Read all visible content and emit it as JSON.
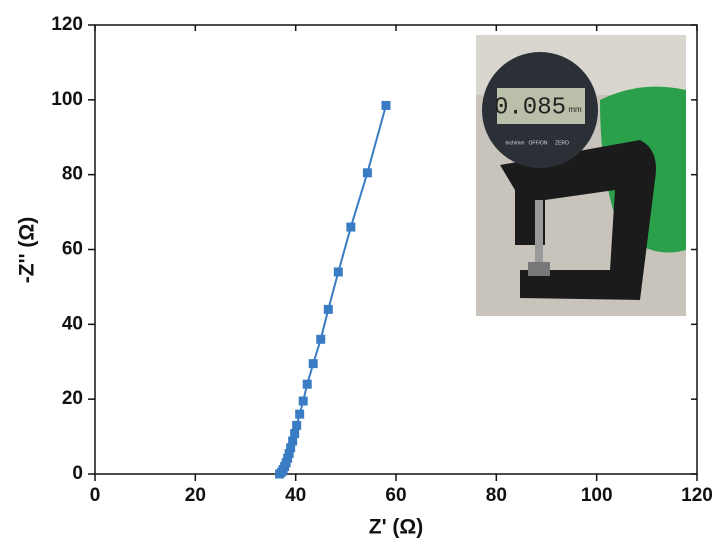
{
  "chart_data": {
    "type": "scatter",
    "xlabel": "Z' (Ω)",
    "ylabel": "-Z'' (Ω)",
    "series": [
      {
        "color": "#3a7cc4",
        "x": [
          36.8,
          37.2,
          37.5,
          37.8,
          38.1,
          38.4,
          38.7,
          39.0,
          39.4,
          39.8,
          40.2,
          40.8,
          41.5,
          42.3,
          43.5,
          45.0,
          46.5,
          48.5,
          51.0,
          54.3,
          58.0
        ],
        "values": [
          0,
          0.5,
          1.2,
          2,
          3,
          4.2,
          5.5,
          7,
          8.8,
          10.8,
          13,
          16,
          19.5,
          24,
          29.5,
          36,
          44,
          54,
          66,
          80.5,
          98.5
        ]
      }
    ],
    "xlim": [
      0,
      120
    ],
    "xticks": [
      0,
      20,
      40,
      60,
      80,
      100,
      120
    ],
    "ylim": [
      0,
      120
    ],
    "yticks": [
      0,
      20,
      40,
      60,
      80,
      100,
      120
    ],
    "inset": {
      "display": "0.085",
      "unit": "mm",
      "buttons": [
        "Inch/mm",
        "OFF/ON",
        "ZERO"
      ]
    }
  }
}
